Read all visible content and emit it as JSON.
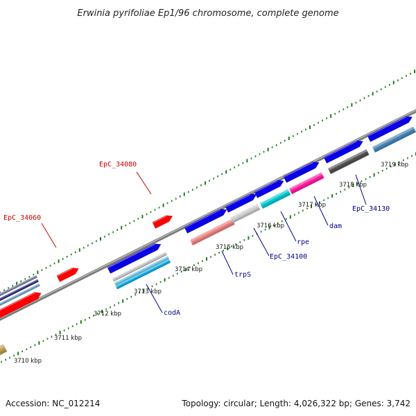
{
  "title": "Erwinia pyrifoliae Ep1/96 chromosome, complete genome",
  "footer": {
    "accession": "Accession: NC_012214",
    "topology": "Topology: circular; Length: 4,026,322 bp; Genes: 3,742"
  },
  "colors": {
    "forward_gene": "#0a00e6",
    "reverse_gene_red": "#ff0000",
    "backbone": "#888888",
    "tick_mark": "#1b7a1b",
    "label_blue": "#00008b",
    "label_red": "#cc0000"
  },
  "scale_labels": [
    "3710 kbp",
    "3711 kbp",
    "3712 kbp",
    "3713 kbp",
    "3714 kbp",
    "3715 kbp",
    "3716 kbp",
    "3717 kbp",
    "3718 kbp",
    "3719 kbp"
  ],
  "gene_labels": [
    {
      "text": "EpC_34080",
      "color": "red"
    },
    {
      "text": "EpC_34060",
      "color": "red"
    },
    {
      "text": "codA",
      "color": "blue"
    },
    {
      "text": "trpS",
      "color": "blue"
    },
    {
      "text": "EpC_34100",
      "color": "blue"
    },
    {
      "text": "rpe",
      "color": "blue"
    },
    {
      "text": "dam",
      "color": "blue"
    },
    {
      "text": "EpC_34130",
      "color": "blue"
    }
  ]
}
